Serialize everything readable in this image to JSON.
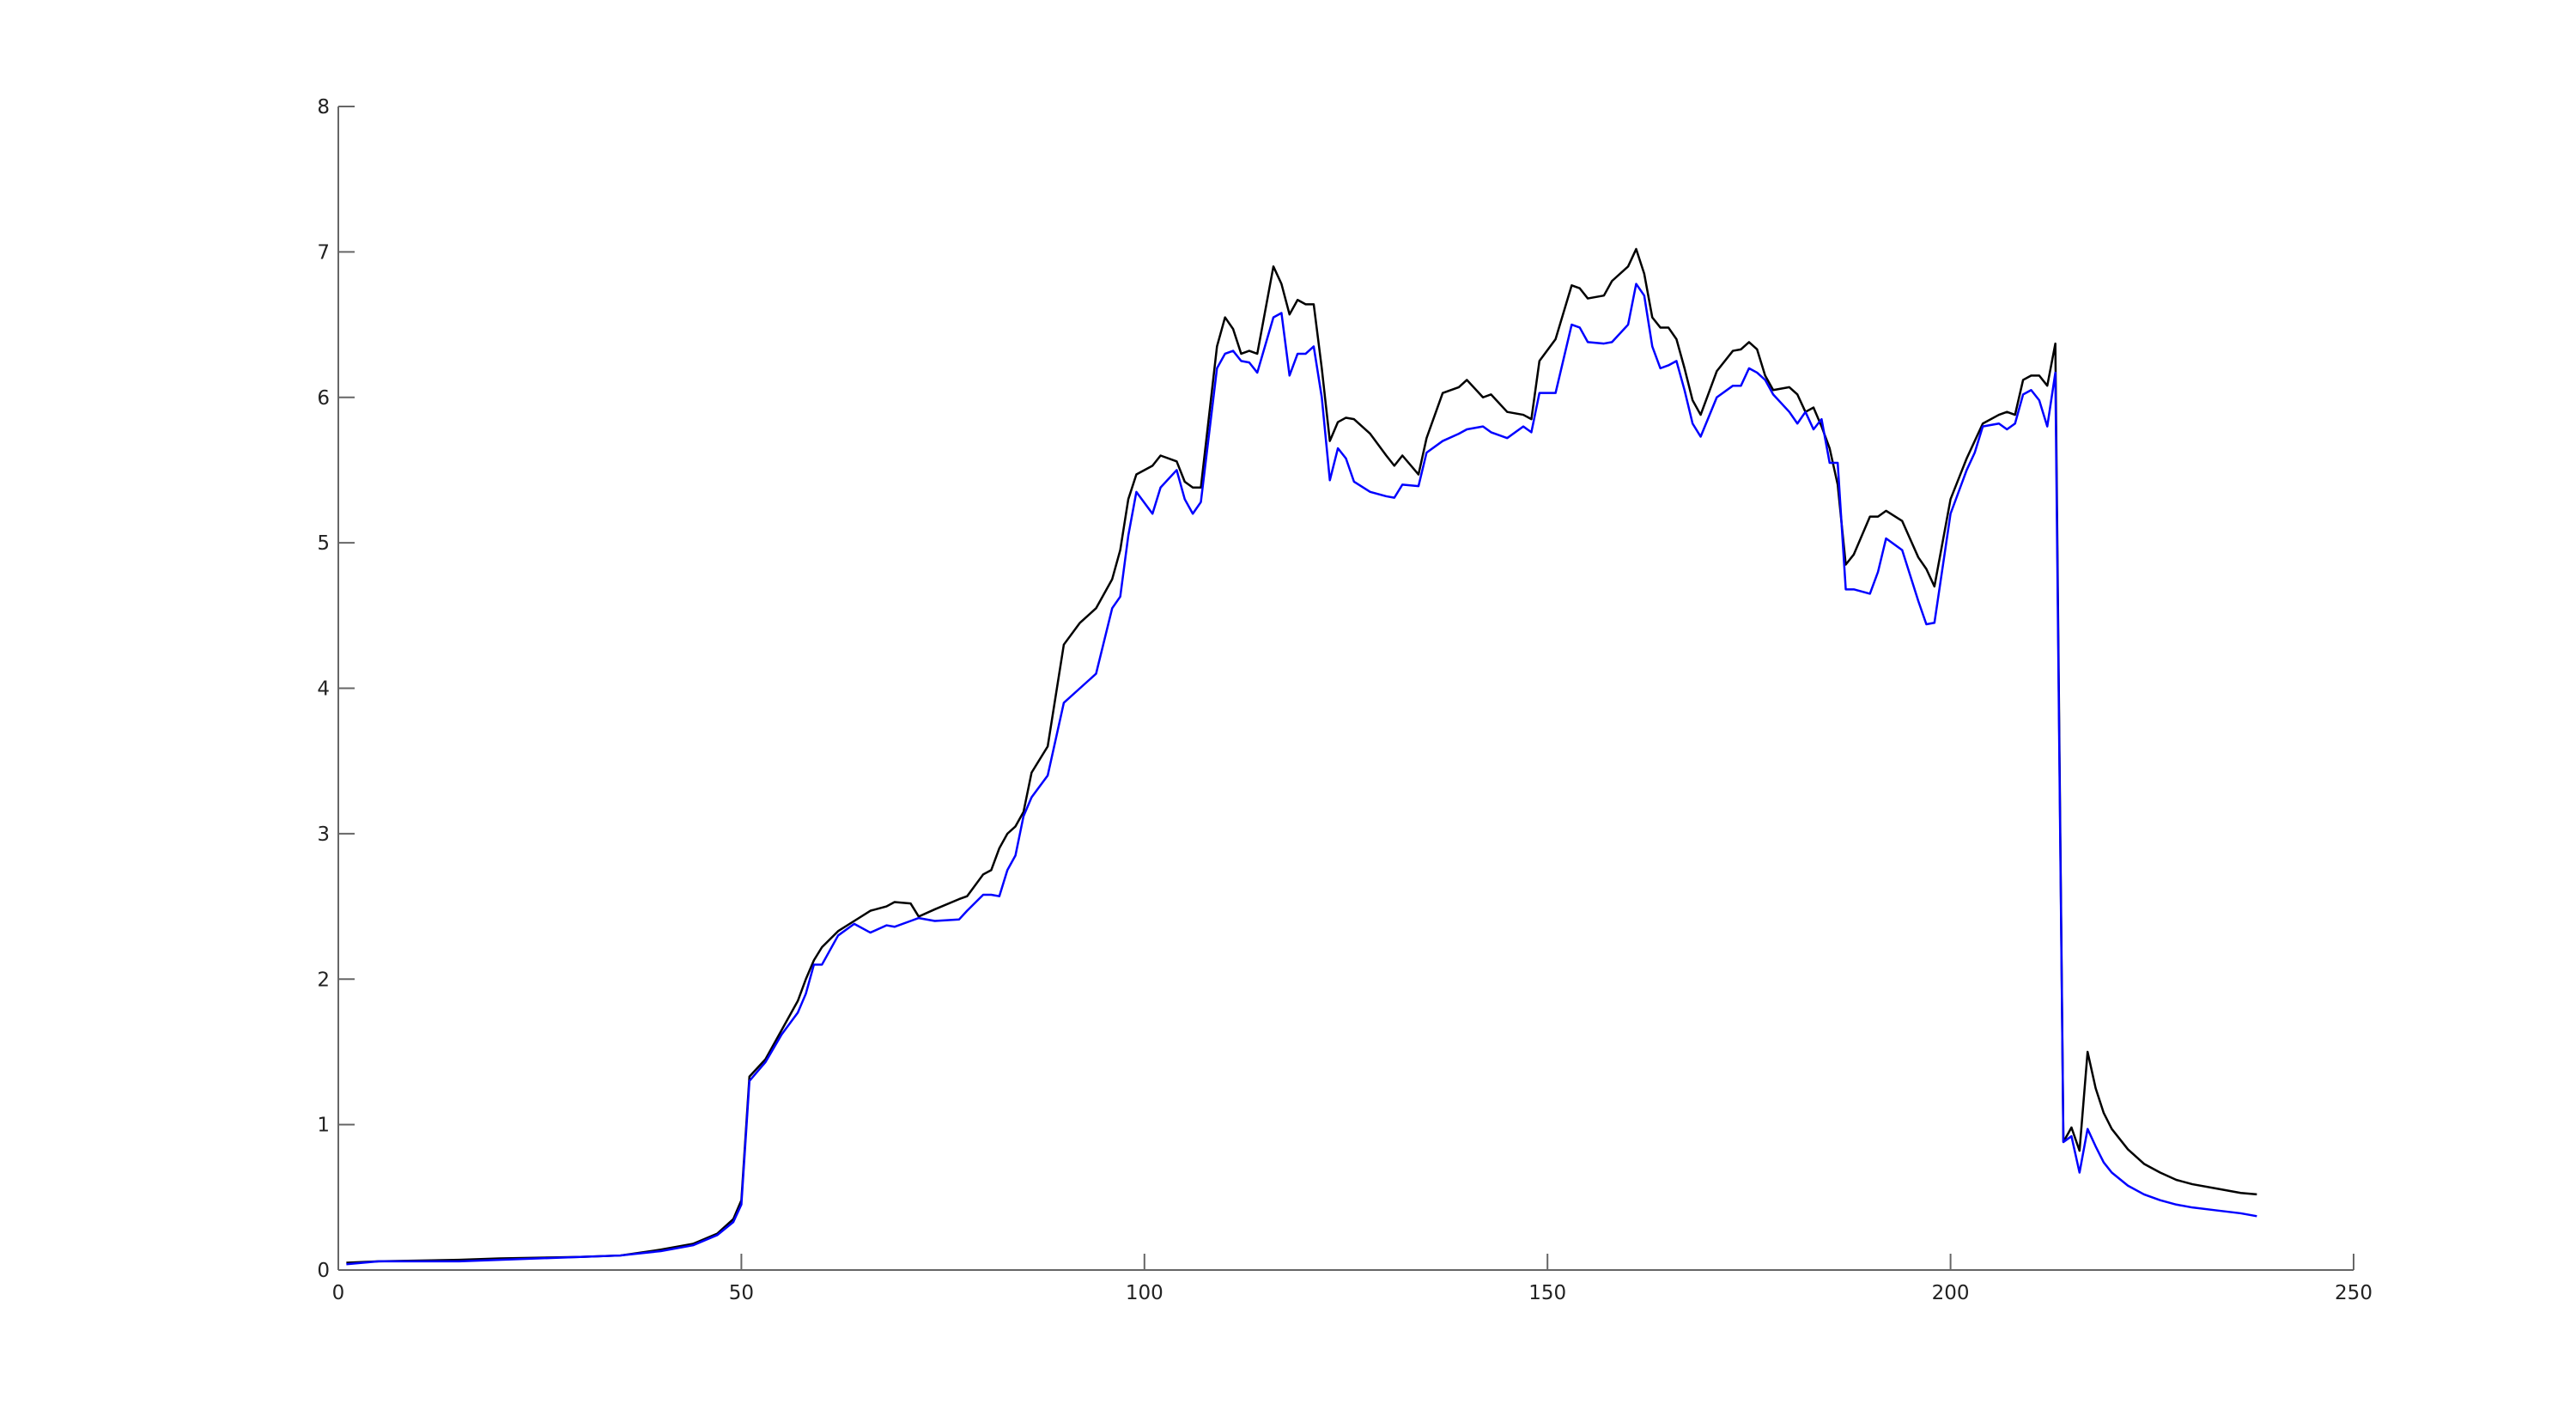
{
  "chart_data": {
    "type": "line",
    "x": [
      1,
      5,
      15,
      20,
      30,
      35,
      40,
      44,
      47,
      49,
      50,
      51,
      53,
      55,
      57,
      58,
      59,
      60,
      62,
      64,
      66,
      68,
      69,
      71,
      72,
      74,
      77,
      78,
      80,
      81,
      82,
      83,
      84,
      85,
      86,
      88,
      90,
      92,
      94,
      96,
      97,
      98,
      99,
      101,
      102,
      104,
      105,
      106,
      107,
      109,
      110,
      111,
      112,
      113,
      114,
      116,
      117,
      118,
      119,
      120,
      121,
      122,
      123,
      124,
      125,
      126,
      128,
      130,
      131,
      132,
      134,
      135,
      137,
      139,
      140,
      142,
      143,
      145,
      147,
      148,
      149,
      151,
      153,
      154,
      155,
      157,
      158,
      160,
      161,
      162,
      163,
      164,
      165,
      166,
      167,
      168,
      169,
      171,
      173,
      174,
      175,
      176,
      177,
      178,
      180,
      181,
      182,
      183,
      184,
      185,
      186,
      187,
      188,
      190,
      191,
      192,
      194,
      196,
      197,
      198,
      200,
      202,
      203,
      204,
      206,
      207,
      208,
      209,
      210,
      211,
      212,
      213,
      214,
      215,
      216,
      217,
      218,
      219,
      220,
      222,
      224,
      226,
      228,
      230,
      233,
      236,
      238
    ],
    "series": [
      {
        "color": "#000000",
        "values": [
          0.05,
          0.06,
          0.07,
          0.08,
          0.09,
          0.1,
          0.14,
          0.18,
          0.25,
          0.35,
          0.48,
          1.33,
          1.45,
          1.65,
          1.85,
          2.0,
          2.13,
          2.22,
          2.33,
          2.4,
          2.47,
          2.5,
          2.53,
          2.52,
          2.43,
          2.48,
          2.55,
          2.57,
          2.72,
          2.75,
          2.9,
          3.0,
          3.05,
          3.15,
          3.42,
          3.6,
          4.3,
          4.45,
          4.55,
          4.75,
          4.95,
          5.3,
          5.47,
          5.53,
          5.6,
          5.56,
          5.42,
          5.38,
          5.38,
          6.35,
          6.55,
          6.47,
          6.3,
          6.32,
          6.3,
          6.9,
          6.78,
          6.57,
          6.67,
          6.64,
          6.64,
          6.2,
          5.7,
          5.83,
          5.86,
          5.85,
          5.75,
          5.6,
          5.53,
          5.6,
          5.47,
          5.72,
          6.03,
          6.07,
          6.12,
          6.0,
          6.02,
          5.9,
          5.88,
          5.85,
          6.25,
          6.4,
          6.77,
          6.75,
          6.68,
          6.7,
          6.8,
          6.9,
          7.02,
          6.85,
          6.55,
          6.48,
          6.48,
          6.4,
          6.2,
          5.98,
          5.88,
          6.18,
          6.32,
          6.33,
          6.38,
          6.33,
          6.15,
          6.05,
          6.07,
          6.02,
          5.9,
          5.93,
          5.8,
          5.65,
          5.4,
          4.85,
          4.92,
          5.18,
          5.18,
          5.22,
          5.15,
          4.9,
          4.82,
          4.7,
          5.3,
          5.58,
          5.7,
          5.82,
          5.88,
          5.9,
          5.88,
          6.12,
          6.15,
          6.15,
          6.08,
          6.37,
          0.88,
          0.98,
          0.82,
          1.5,
          1.25,
          1.08,
          0.97,
          0.83,
          0.73,
          0.67,
          0.62,
          0.59,
          0.56,
          0.53,
          0.52
        ]
      },
      {
        "color": "#0000ff",
        "values": [
          0.04,
          0.06,
          0.06,
          0.07,
          0.09,
          0.1,
          0.13,
          0.17,
          0.24,
          0.33,
          0.45,
          1.3,
          1.43,
          1.62,
          1.77,
          1.9,
          2.1,
          2.1,
          2.3,
          2.38,
          2.32,
          2.37,
          2.36,
          2.4,
          2.42,
          2.4,
          2.41,
          2.47,
          2.58,
          2.58,
          2.57,
          2.75,
          2.85,
          3.12,
          3.25,
          3.4,
          3.9,
          4.0,
          4.1,
          4.55,
          4.63,
          5.05,
          5.35,
          5.2,
          5.38,
          5.5,
          5.3,
          5.2,
          5.28,
          6.2,
          6.3,
          6.32,
          6.25,
          6.24,
          6.17,
          6.55,
          6.58,
          6.15,
          6.3,
          6.3,
          6.35,
          6.0,
          5.43,
          5.65,
          5.58,
          5.42,
          5.35,
          5.32,
          5.31,
          5.4,
          5.39,
          5.62,
          5.7,
          5.75,
          5.78,
          5.8,
          5.76,
          5.72,
          5.8,
          5.76,
          6.03,
          6.03,
          6.5,
          6.48,
          6.38,
          6.37,
          6.38,
          6.5,
          6.78,
          6.7,
          6.35,
          6.2,
          6.22,
          6.25,
          6.05,
          5.82,
          5.73,
          6.0,
          6.08,
          6.08,
          6.2,
          6.17,
          6.12,
          6.02,
          5.9,
          5.82,
          5.9,
          5.78,
          5.85,
          5.55,
          5.55,
          4.68,
          4.68,
          4.65,
          4.8,
          5.03,
          4.95,
          4.6,
          4.44,
          4.45,
          5.2,
          5.5,
          5.62,
          5.8,
          5.82,
          5.78,
          5.82,
          6.02,
          6.05,
          5.98,
          5.8,
          6.17,
          0.88,
          0.92,
          0.67,
          0.97,
          0.85,
          0.74,
          0.67,
          0.58,
          0.52,
          0.48,
          0.45,
          0.43,
          0.41,
          0.39,
          0.37
        ]
      }
    ],
    "xlim": [
      0,
      250
    ],
    "xticks": [
      0,
      50,
      100,
      150,
      200,
      250
    ],
    "ylim": [
      0,
      8
    ],
    "yticks": [
      0,
      1,
      2,
      3,
      4,
      5,
      6,
      7,
      8
    ]
  }
}
